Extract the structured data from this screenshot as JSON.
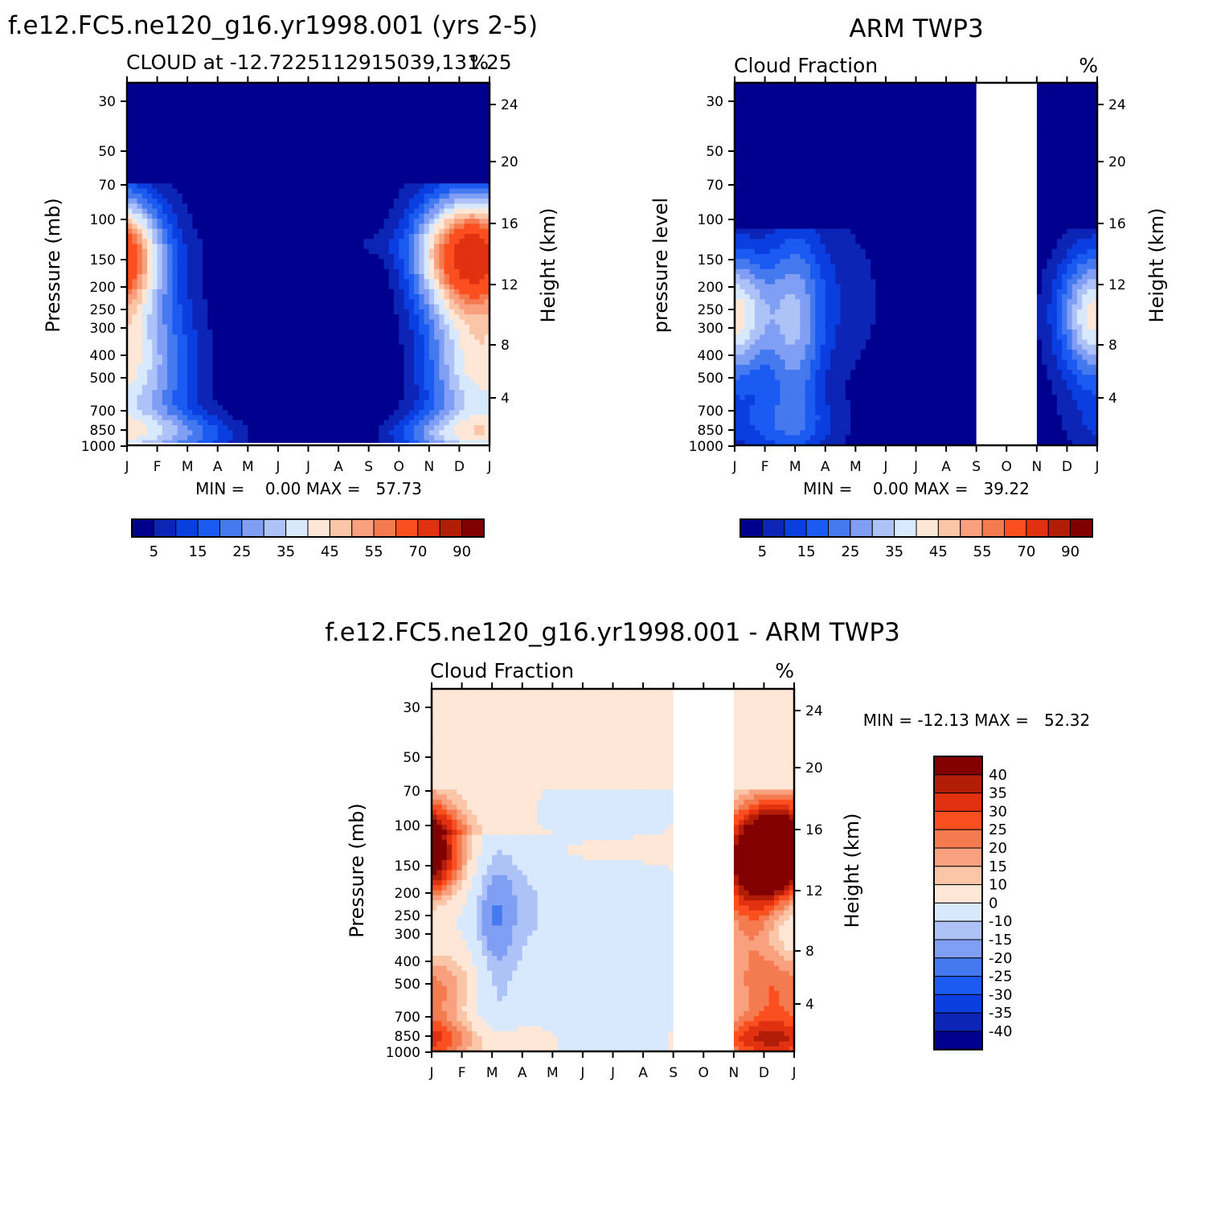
{
  "chart_data": [
    {
      "type": "heatmap",
      "title": "f.e12.FC5.ne120_g16.yr1998.001 (yrs 2-5)",
      "subtitle_left": "CLOUD at -12.7225112915039,131.25",
      "subtitle_right": "%",
      "ylabel": "Pressure (mb)",
      "ylabel_right": "Height (km)",
      "x_ticks": [
        "J",
        "F",
        "M",
        "A",
        "M",
        "J",
        "J",
        "A",
        "S",
        "O",
        "N",
        "D",
        "J"
      ],
      "y_ticks": [
        "30",
        "50",
        "70",
        "100",
        "150",
        "200",
        "250",
        "300",
        "400",
        "500",
        "700",
        "850",
        "1000"
      ],
      "y_ticks_right": [
        "24",
        "20",
        "16",
        "12",
        "8",
        "4"
      ],
      "missing_months": [],
      "min_max_text": "MIN =    0.00 MAX =   57.73",
      "min": 0.0,
      "max": 57.73,
      "colorbar_labels": [
        "5",
        "15",
        "25",
        "35",
        "45",
        "55",
        "70",
        "90"
      ],
      "colorbar_orientation": "horizontal"
    },
    {
      "type": "heatmap",
      "title": "ARM TWP3",
      "subtitle_left": "Cloud Fraction",
      "subtitle_right": "%",
      "ylabel": "pressure level",
      "ylabel_right": "Height (km)",
      "x_ticks": [
        "J",
        "F",
        "M",
        "A",
        "M",
        "J",
        "J",
        "A",
        "S",
        "O",
        "N",
        "D",
        "J"
      ],
      "y_ticks": [
        "30",
        "50",
        "70",
        "100",
        "150",
        "200",
        "250",
        "300",
        "400",
        "500",
        "700",
        "850",
        "1000"
      ],
      "y_ticks_right": [
        "24",
        "20",
        "16",
        "12",
        "8",
        "4"
      ],
      "missing_months": [
        "S",
        "O"
      ],
      "min_max_text": "MIN =    0.00 MAX =   39.22",
      "min": 0.0,
      "max": 39.22,
      "colorbar_labels": [
        "5",
        "15",
        "25",
        "35",
        "45",
        "55",
        "70",
        "90"
      ],
      "colorbar_orientation": "horizontal"
    },
    {
      "type": "heatmap",
      "title": "f.e12.FC5.ne120_g16.yr1998.001 - ARM TWP3",
      "subtitle_left": "Cloud Fraction",
      "subtitle_right": "%",
      "ylabel": "Pressure (mb)",
      "ylabel_right": "Height (km)",
      "x_ticks": [
        "J",
        "F",
        "M",
        "A",
        "M",
        "J",
        "J",
        "A",
        "S",
        "O",
        "N",
        "D",
        "J"
      ],
      "y_ticks": [
        "30",
        "50",
        "70",
        "100",
        "150",
        "200",
        "250",
        "300",
        "400",
        "500",
        "700",
        "850",
        "1000"
      ],
      "y_ticks_right": [
        "24",
        "20",
        "16",
        "12",
        "8",
        "4"
      ],
      "missing_months": [
        "S",
        "O"
      ],
      "min_max_text": "MIN = -12.13 MAX =   52.32",
      "min": -12.13,
      "max": 52.32,
      "colorbar_labels": [
        "40",
        "35",
        "30",
        "25",
        "20",
        "15",
        "10",
        "0",
        "-10",
        "-15",
        "-20",
        "-25",
        "-30",
        "-35",
        "-40"
      ],
      "colorbar_orientation": "vertical"
    }
  ],
  "palette_cloud": [
    "#00008f",
    "#0c25b6",
    "#0a3ee0",
    "#1b5bf2",
    "#4579f0",
    "#7f9ef4",
    "#adc2f7",
    "#d8e8fd",
    "#fee7d6",
    "#fbc5a8",
    "#f9a07e",
    "#f47a50",
    "#fb4f1f",
    "#e13110",
    "#b21d08",
    "#820000"
  ],
  "palette_diff": [
    "#820000",
    "#b21d08",
    "#e13110",
    "#fb4f1f",
    "#f47a50",
    "#f9a07e",
    "#fbc5a8",
    "#fee7d6",
    "#d8e8fd",
    "#adc2f7",
    "#7f9ef4",
    "#4579f0",
    "#1b5bf2",
    "#0a3ee0",
    "#0c25b6",
    "#00008f"
  ]
}
